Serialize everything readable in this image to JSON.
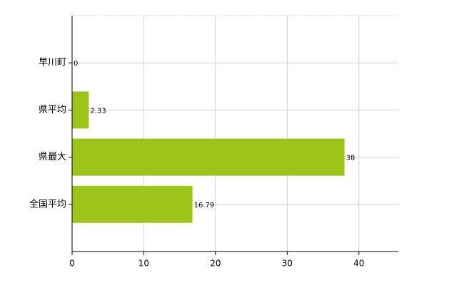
{
  "chart_data": {
    "type": "hbar",
    "categories": [
      "早川町",
      "県平均",
      "県最大",
      "全国平均"
    ],
    "values": [
      0,
      2.33,
      38,
      16.79
    ],
    "color": "#9dc41a",
    "xlim": [
      0,
      45.5
    ],
    "xticks": [
      0,
      10,
      20,
      30,
      40
    ],
    "grid": true
  }
}
